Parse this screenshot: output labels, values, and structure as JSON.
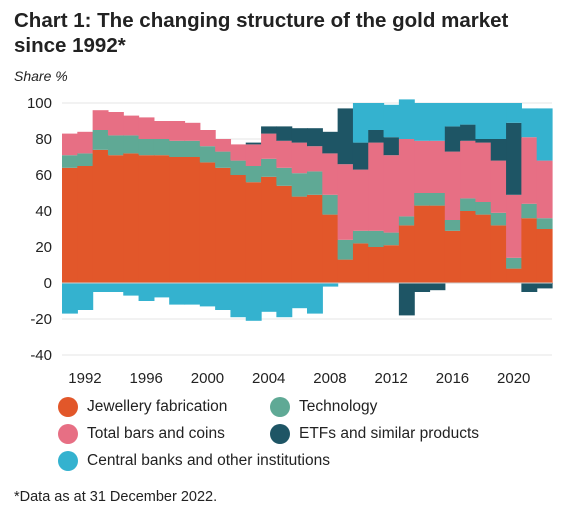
{
  "title": "Chart 1: The changing structure of the gold market since 1992*",
  "ylabel": "Share %",
  "footnote": "*Data as at 31 December 2022.",
  "colors": {
    "jewellery": "#e2572a",
    "technology": "#5fa995",
    "bars": "#e76f84",
    "etfs": "#1e5565",
    "central_banks": "#34b2cf"
  },
  "legend": [
    {
      "key": "jewellery",
      "label": "Jewellery fabrication"
    },
    {
      "key": "technology",
      "label": "Technology"
    },
    {
      "key": "bars",
      "label": "Total bars and coins"
    },
    {
      "key": "etfs",
      "label": "ETFs and similar products"
    },
    {
      "key": "central_banks",
      "label": "Central banks and other institutions"
    }
  ],
  "chart_data": {
    "type": "bar",
    "stacked": true,
    "ylim": [
      -40,
      100
    ],
    "yticks": [
      -40,
      -20,
      0,
      20,
      40,
      60,
      80,
      100
    ],
    "xtick_labels": [
      "1992",
      "1996",
      "2000",
      "2004",
      "2008",
      "2012",
      "2016",
      "2020"
    ],
    "categories": [
      "1991",
      "1992",
      "1993",
      "1994",
      "1995",
      "1996",
      "1997",
      "1998",
      "1999",
      "2000",
      "2001",
      "2002",
      "2003",
      "2004",
      "2005",
      "2006",
      "2007",
      "2008",
      "2009",
      "2010",
      "2011",
      "2012",
      "2013",
      "2014",
      "2015",
      "2016",
      "2017",
      "2018",
      "2019",
      "2020",
      "2021",
      "2022"
    ],
    "series": [
      {
        "key": "jewellery",
        "name": "Jewellery fabrication",
        "values": [
          64,
          65,
          74,
          71,
          72,
          71,
          71,
          70,
          70,
          67,
          64,
          60,
          56,
          59,
          54,
          48,
          49,
          38,
          13,
          22,
          20,
          21,
          32,
          43,
          43,
          29,
          40,
          38,
          32,
          8,
          36,
          30
        ]
      },
      {
        "key": "technology",
        "name": "Technology",
        "values": [
          7,
          7,
          11,
          11,
          10,
          9,
          9,
          9,
          9,
          9,
          9,
          8,
          9,
          10,
          10,
          13,
          13,
          11,
          11,
          7,
          9,
          7,
          5,
          7,
          7,
          6,
          7,
          7,
          7,
          6,
          8,
          6
        ]
      },
      {
        "key": "bars",
        "name": "Total bars and coins",
        "values": [
          12,
          12,
          11,
          13,
          11,
          12,
          10,
          11,
          10,
          9,
          7,
          9,
          12,
          14,
          15,
          17,
          14,
          23,
          42,
          34,
          49,
          43,
          43,
          29,
          29,
          38,
          32,
          33,
          29,
          35,
          37,
          32
        ]
      },
      {
        "key": "etfs",
        "name": "ETFs and similar products",
        "values": [
          0,
          0,
          0,
          0,
          0,
          0,
          0,
          0,
          0,
          0,
          0,
          0,
          1,
          4,
          8,
          8,
          10,
          12,
          31,
          15,
          7,
          10,
          -18,
          -5,
          -4,
          14,
          9,
          2,
          12,
          40,
          -5,
          -3
        ]
      },
      {
        "key": "central_banks",
        "name": "Central banks and other institutions",
        "values": [
          -17,
          -15,
          -5,
          -5,
          -7,
          -10,
          -8,
          -12,
          -12,
          -13,
          -15,
          -19,
          -21,
          -16,
          -19,
          -14,
          -17,
          -2,
          0,
          22,
          15,
          18,
          22,
          21,
          21,
          13,
          12,
          20,
          20,
          11,
          16,
          29
        ]
      }
    ]
  }
}
